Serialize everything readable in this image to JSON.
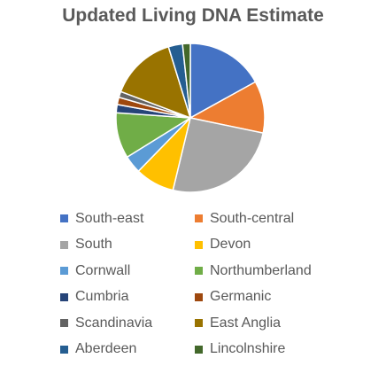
{
  "chart_data": {
    "type": "pie",
    "title": "Updated Living DNA Estimate",
    "series": [
      {
        "name": "South-east",
        "value": 17.1,
        "color": "#4472C4"
      },
      {
        "name": "South-central",
        "value": 11.4,
        "color": "#ED7D31"
      },
      {
        "name": "South",
        "value": 25.7,
        "color": "#A5A5A5"
      },
      {
        "name": "Devon",
        "value": 8.6,
        "color": "#FFC000"
      },
      {
        "name": "Cornwall",
        "value": 3.9,
        "color": "#5B9BD5"
      },
      {
        "name": "Northumberland",
        "value": 10.0,
        "color": "#70AD47"
      },
      {
        "name": "Cumbria",
        "value": 1.8,
        "color": "#264478"
      },
      {
        "name": "Germanic",
        "value": 1.6,
        "color": "#9E480E"
      },
      {
        "name": "Scandinavia",
        "value": 1.3,
        "color": "#636363"
      },
      {
        "name": "East Anglia",
        "value": 14.6,
        "color": "#997300"
      },
      {
        "name": "Aberdeen",
        "value": 3.1,
        "color": "#255E91"
      },
      {
        "name": "Lincolnshire",
        "value": 1.7,
        "color": "#43682B"
      }
    ],
    "legend_position": "bottom",
    "start_angle": "12 o'clock, clockwise"
  }
}
